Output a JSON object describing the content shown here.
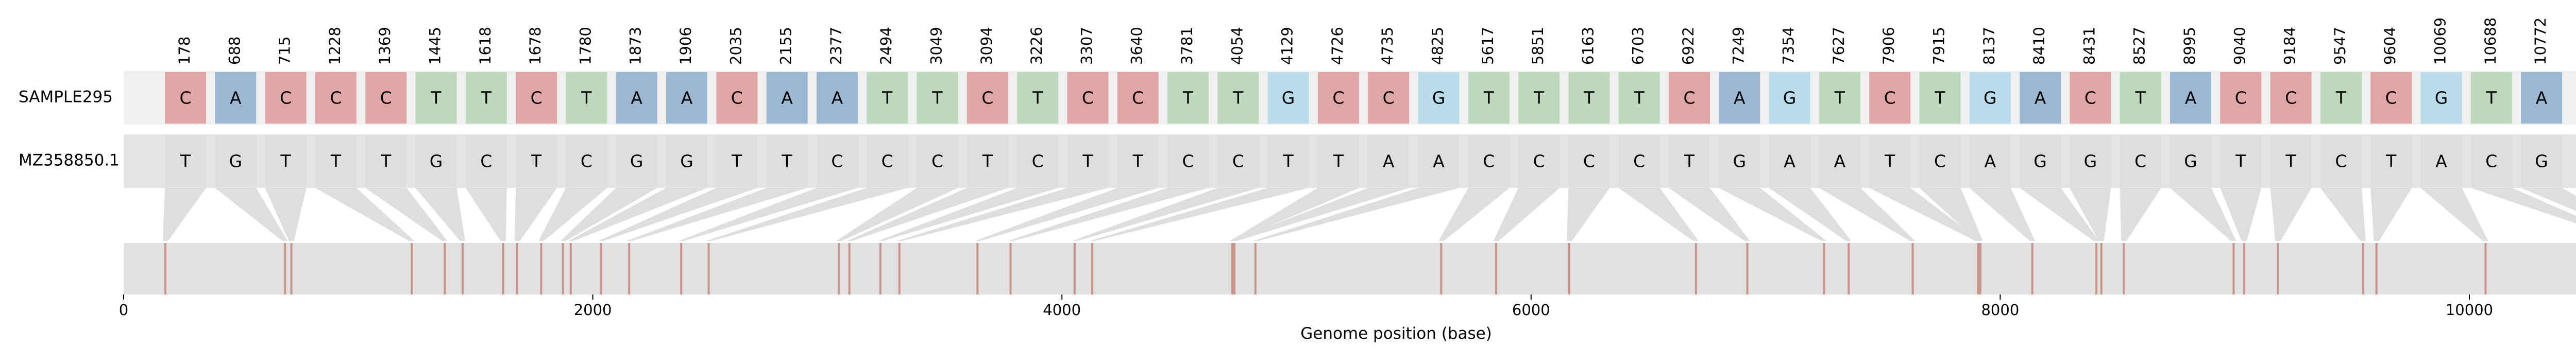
{
  "chart_data": {
    "type": "snp-alignment",
    "title": "",
    "xlabel": "Genome position (base)",
    "xlim": [
      0,
      10850
    ],
    "xticks": [
      0,
      2000,
      4000,
      6000,
      8000,
      10000
    ],
    "rows": [
      {
        "name": "SAMPLE295"
      },
      {
        "name": "MZ358850.1"
      }
    ],
    "positions": [
      178,
      688,
      715,
      1228,
      1369,
      1445,
      1618,
      1678,
      1780,
      1873,
      1906,
      2035,
      2155,
      2377,
      2494,
      3049,
      3094,
      3226,
      3307,
      3640,
      3781,
      4054,
      4129,
      4726,
      4735,
      4825,
      5617,
      5851,
      6163,
      6703,
      6922,
      7249,
      7354,
      7627,
      7906,
      7915,
      8137,
      8410,
      8431,
      8527,
      8995,
      9040,
      9184,
      9547,
      9604,
      10069,
      10688,
      10772
    ],
    "sample_bases": [
      "C",
      "A",
      "C",
      "C",
      "C",
      "T",
      "T",
      "C",
      "T",
      "A",
      "A",
      "C",
      "A",
      "A",
      "T",
      "T",
      "C",
      "T",
      "C",
      "C",
      "T",
      "T",
      "G",
      "C",
      "C",
      "G",
      "T",
      "T",
      "T",
      "T",
      "C",
      "A",
      "G",
      "T",
      "C",
      "T",
      "G",
      "A",
      "C",
      "T",
      "A",
      "C",
      "C",
      "T",
      "C",
      "G",
      "T",
      "A"
    ],
    "reference_bases": [
      "T",
      "G",
      "T",
      "T",
      "T",
      "G",
      "C",
      "T",
      "C",
      "G",
      "G",
      "T",
      "T",
      "C",
      "C",
      "C",
      "T",
      "C",
      "T",
      "T",
      "C",
      "C",
      "T",
      "T",
      "A",
      "A",
      "C",
      "C",
      "C",
      "C",
      "T",
      "G",
      "A",
      "A",
      "T",
      "C",
      "A",
      "G",
      "G",
      "C",
      "G",
      "T",
      "T",
      "C",
      "T",
      "A",
      "C",
      "G"
    ],
    "base_colors": {
      "A": "#9db8d3",
      "C": "#e0a5a5",
      "G": "#b8dcea",
      "T": "#bcd9bc"
    },
    "reference_color": "#dedede",
    "track_color": "#e1e1e1",
    "marker_color": "#c9958b"
  }
}
